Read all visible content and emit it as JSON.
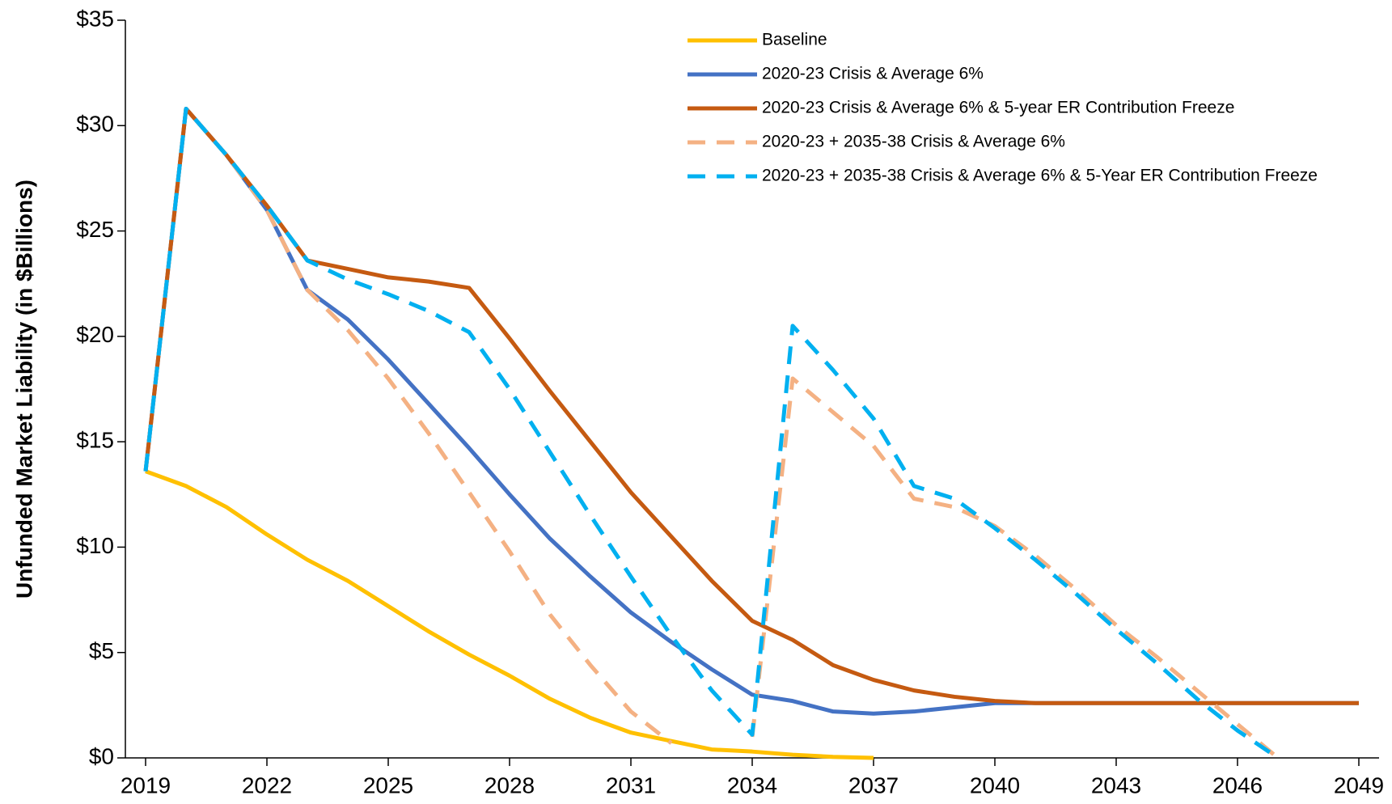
{
  "chart_data": {
    "type": "line",
    "y_label": "Unfunded Market Liability (in $Billions)",
    "x": [
      2019,
      2020,
      2021,
      2022,
      2023,
      2024,
      2025,
      2026,
      2027,
      2028,
      2029,
      2030,
      2031,
      2032,
      2033,
      2034,
      2035,
      2036,
      2037,
      2038,
      2039,
      2040,
      2041,
      2042,
      2043,
      2044,
      2045,
      2046,
      2047,
      2048,
      2049
    ],
    "xlim": [
      2018.5,
      2049.5
    ],
    "xticks": [
      2019,
      2022,
      2025,
      2028,
      2031,
      2034,
      2037,
      2040,
      2043,
      2046,
      2049
    ],
    "ylim": [
      0,
      35
    ],
    "yticks": [
      {
        "value": 0,
        "label": "$0"
      },
      {
        "value": 5,
        "label": "$5"
      },
      {
        "value": 10,
        "label": "$10"
      },
      {
        "value": 15,
        "label": "$15"
      },
      {
        "value": 20,
        "label": "$20"
      },
      {
        "value": 25,
        "label": "$25"
      },
      {
        "value": 30,
        "label": "$30"
      },
      {
        "value": 35,
        "label": "$35"
      }
    ],
    "grid": false,
    "legend": "top-right",
    "series": [
      {
        "name": "Baseline",
        "color": "#ffc000",
        "dashed": false,
        "values": [
          13.6,
          12.9,
          11.9,
          10.6,
          9.4,
          8.4,
          7.2,
          6.0,
          4.9,
          3.9,
          2.8,
          1.9,
          1.2,
          0.8,
          0.4,
          0.3,
          0.15,
          0.05,
          0,
          null,
          null,
          null,
          null,
          null,
          null,
          null,
          null,
          null,
          null,
          null,
          null
        ]
      },
      {
        "name": "2020-23 Crisis & Average 6%",
        "color": "#4472c4",
        "dashed": false,
        "values": [
          13.6,
          30.8,
          28.6,
          26.0,
          22.2,
          20.8,
          18.9,
          16.8,
          14.7,
          12.5,
          10.4,
          8.6,
          6.9,
          5.5,
          4.2,
          3.0,
          2.7,
          2.2,
          2.1,
          2.2,
          2.4,
          2.6,
          2.6,
          2.6,
          2.6,
          2.6,
          2.6,
          2.6,
          2.6,
          2.6,
          2.6
        ]
      },
      {
        "name": "2020-23 Crisis & Average 6% & 5-year ER Contribution Freeze",
        "color": "#c55a11",
        "dashed": false,
        "values": [
          13.6,
          30.8,
          28.6,
          26.2,
          23.6,
          23.2,
          22.8,
          22.6,
          22.3,
          19.9,
          17.4,
          15.0,
          12.6,
          10.5,
          8.4,
          6.5,
          5.6,
          4.4,
          3.7,
          3.2,
          2.9,
          2.7,
          2.6,
          2.6,
          2.6,
          2.6,
          2.6,
          2.6,
          2.6,
          2.6,
          2.6
        ]
      },
      {
        "name": "2020-23 + 2035-38 Crisis & Average 6%",
        "color": "#f4b183",
        "dashed": true,
        "values": [
          13.6,
          30.8,
          28.6,
          26.0,
          22.2,
          20.3,
          18.0,
          15.4,
          12.6,
          9.8,
          6.8,
          4.4,
          2.2,
          0.7,
          null,
          1.0,
          18.0,
          16.4,
          14.8,
          12.3,
          11.9,
          11.0,
          9.6,
          8.0,
          6.3,
          4.8,
          3.2,
          1.6,
          0,
          null,
          null
        ]
      },
      {
        "name": "2020-23 + 2035-38 Crisis & Average 6% & 5-Year ER Contribution Freeze",
        "color": "#00b0f0",
        "dashed": true,
        "values": [
          13.6,
          30.8,
          28.6,
          26.2,
          23.6,
          22.7,
          22.0,
          21.2,
          20.2,
          17.5,
          14.5,
          11.5,
          8.6,
          5.8,
          3.2,
          1.1,
          20.5,
          18.4,
          16.1,
          12.9,
          12.3,
          10.9,
          9.4,
          7.8,
          6.1,
          4.5,
          2.8,
          1.3,
          0,
          null,
          null
        ]
      }
    ]
  }
}
